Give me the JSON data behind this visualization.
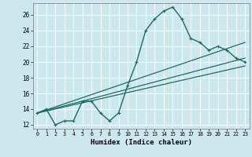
{
  "xlabel": "Humidex (Indice chaleur)",
  "bg_color": "#cce8ee",
  "grid_color": "#ffffff",
  "line_color": "#1e6b5e",
  "xlim": [
    -0.5,
    23.5
  ],
  "ylim": [
    11.5,
    27.5
  ],
  "xticks": [
    0,
    1,
    2,
    3,
    4,
    5,
    6,
    7,
    8,
    9,
    10,
    11,
    12,
    13,
    14,
    15,
    16,
    17,
    18,
    19,
    20,
    21,
    22,
    23
  ],
  "yticks": [
    12,
    14,
    16,
    18,
    20,
    22,
    24,
    26
  ],
  "series1_x": [
    0,
    1,
    2,
    3,
    4,
    5,
    6,
    7,
    8,
    9,
    10,
    11,
    12,
    13,
    14,
    15,
    16,
    17,
    18,
    19,
    20,
    21,
    22,
    23
  ],
  "series1_y": [
    13.5,
    14.0,
    12.0,
    12.5,
    12.5,
    15.0,
    15.0,
    13.5,
    12.5,
    13.5,
    17.0,
    20.0,
    24.0,
    25.5,
    26.5,
    27.0,
    25.5,
    23.0,
    22.5,
    21.5,
    22.0,
    21.5,
    20.5,
    20.0
  ],
  "line2_x": [
    0,
    23
  ],
  "line2_y": [
    13.5,
    22.5
  ],
  "line3_x": [
    0,
    23
  ],
  "line3_y": [
    13.5,
    20.5
  ],
  "line4_x": [
    0,
    23
  ],
  "line4_y": [
    13.5,
    19.5
  ]
}
